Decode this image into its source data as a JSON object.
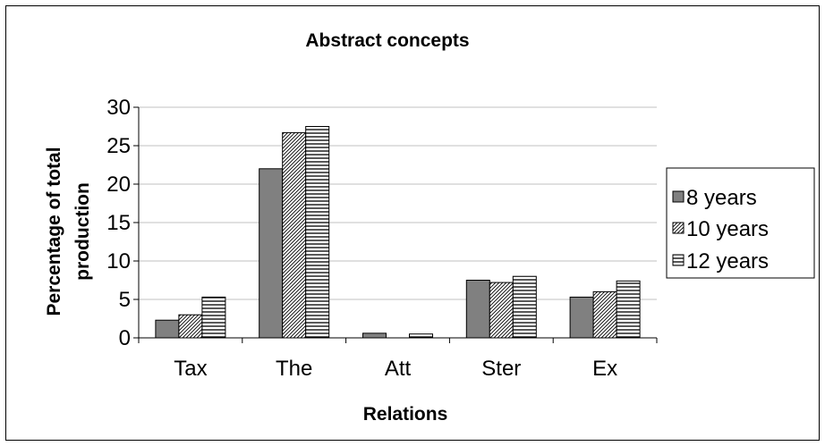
{
  "chart_data": {
    "type": "bar",
    "title": "Abstract concepts",
    "xlabel": "Relations",
    "ylabel_lines": [
      "Percentage of total",
      "production"
    ],
    "categories": [
      "Tax",
      "The",
      "Att",
      "Ster",
      "Ex"
    ],
    "series": [
      {
        "name": "8 years",
        "values": [
          2.3,
          22.0,
          0.6,
          7.5,
          5.3
        ],
        "fill": "solid",
        "color": "#808080"
      },
      {
        "name": "10 years",
        "values": [
          3.0,
          26.7,
          0.0,
          7.2,
          6.0
        ],
        "fill": "diagonal-hatch",
        "color": "#ffffff"
      },
      {
        "name": "12 years",
        "values": [
          5.3,
          27.5,
          0.5,
          8.0,
          7.4
        ],
        "fill": "horizontal-lines",
        "color": "#ffffff"
      }
    ],
    "yticks": [
      "0",
      "5",
      "10",
      "15",
      "20",
      "25",
      "30"
    ],
    "ylim": [
      0,
      30
    ],
    "grid": true,
    "legend_position": "right"
  }
}
